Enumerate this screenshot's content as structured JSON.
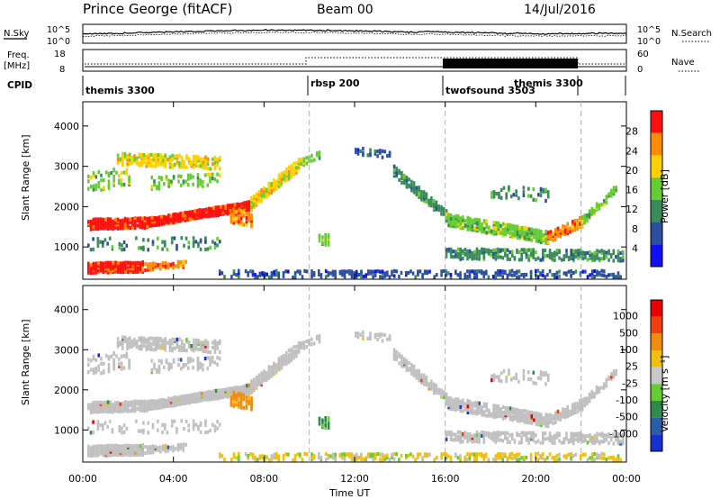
{
  "header": {
    "station": "Prince George (fitACF)",
    "beam": "Beam 00",
    "date": "14/Jul/2016"
  },
  "noise_panel": {
    "left_label": "N.Sky",
    "right_label": "N.Search",
    "left_ticks": [
      "10^5",
      "10^0"
    ],
    "right_ticks": [
      "10^5",
      "10^0"
    ]
  },
  "freq_panel": {
    "left_label": "Freq.",
    "left_unit": "[MHz]",
    "left_ticks": [
      "18",
      "8"
    ],
    "right_label": "Nave",
    "right_ticks": [
      "60",
      "0"
    ]
  },
  "cpid": {
    "label": "CPID",
    "segments": [
      {
        "name": "themis 3300",
        "start_hour": 0
      },
      {
        "name": "rbsp 200",
        "start_hour": 10
      },
      {
        "name": "twofsound 3503",
        "start_hour": 16
      },
      {
        "name": "themis 3300",
        "start_hour": 22
      }
    ]
  },
  "chart_data": [
    {
      "type": "heatmap",
      "name": "power",
      "ylabel": "Slant Range [km]",
      "xlabel": "",
      "ylim": [
        200,
        4600
      ],
      "yticks": [
        "1000",
        "2000",
        "3000",
        "4000"
      ],
      "colorbar_label": "Power [dB]",
      "colorbar_ticks": [
        "4",
        "8",
        "12",
        "16",
        "20",
        "24",
        "28"
      ],
      "colorbar_colors": [
        "#1010f0",
        "#2c4fa0",
        "#3a8a5a",
        "#66cc33",
        "#ffd000",
        "#ff8c00",
        "#ff1010"
      ]
    },
    {
      "type": "heatmap",
      "name": "velocity",
      "ylabel": "Slant Range [km]",
      "xlabel": "Time UT",
      "ylim": [
        200,
        4600
      ],
      "yticks": [
        "1000",
        "2000",
        "3000",
        "4000"
      ],
      "xticks": [
        "00:00",
        "04:00",
        "08:00",
        "12:00",
        "16:00",
        "20:00",
        "00:00"
      ],
      "colorbar_label": "Velocity [m s⁻¹]",
      "colorbar_ticks": [
        "1000",
        "500",
        "100",
        "25",
        "-25",
        "-100",
        "-500",
        "-1000"
      ],
      "colorbar_colors": [
        "#1a2fd0",
        "#2c5ea8",
        "#2e8a4a",
        "#66cc33",
        "#c8c8c8",
        "#f0c010",
        "#f08c10",
        "#f04010",
        "#e80000"
      ]
    }
  ],
  "colors": {
    "ground_scatter": "#c0c0c0",
    "boundary_dash": "#b0b0b0"
  }
}
